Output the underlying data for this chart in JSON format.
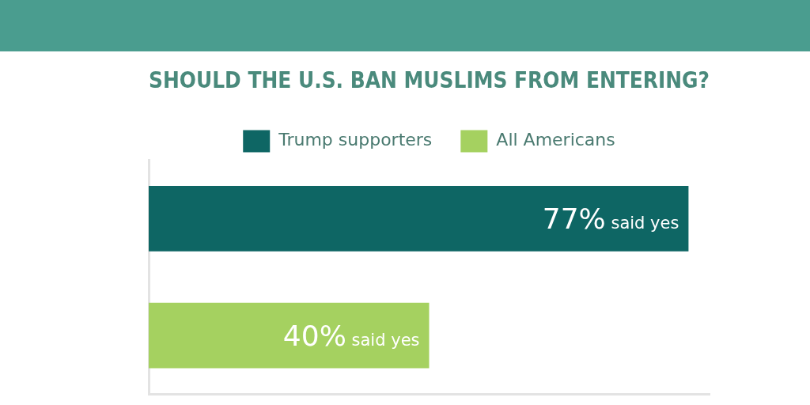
{
  "chart_data": {
    "type": "bar",
    "orientation": "horizontal",
    "stacked": true,
    "title": "SHOULD THE U.S. BAN MUSLIMS FROM ENTERING?",
    "categories": [
      null,
      null
    ],
    "series": [
      {
        "name": "Trump supporters",
        "color": "#0e6664",
        "values": [
          77,
          null
        ],
        "value_labels": [
          "77% said yes",
          null
        ]
      },
      {
        "name": "All Americans",
        "color": "#a5d160",
        "values": [
          null,
          40
        ],
        "value_labels": [
          null,
          "40% said yes"
        ]
      }
    ],
    "legend": "top",
    "tick_labels": false
  }
}
